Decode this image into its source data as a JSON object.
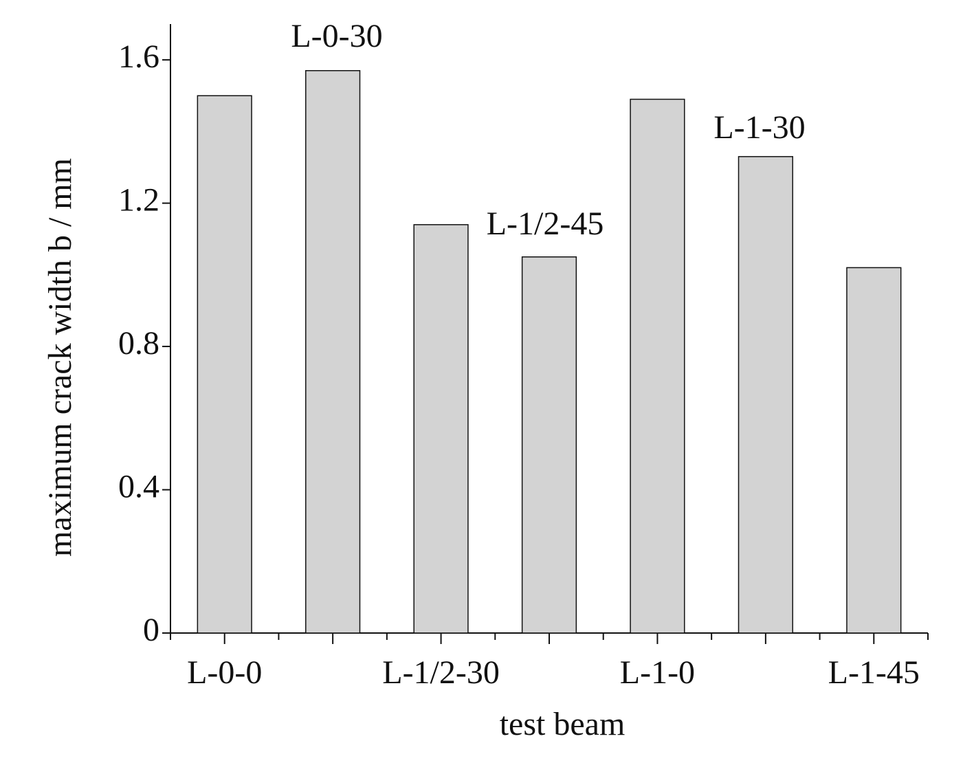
{
  "chart_data": {
    "type": "bar",
    "x_label": "test beam",
    "y_label": "maximum crack width b / mm",
    "categories": [
      "L-0-0",
      null,
      "L-1/2-30",
      null,
      "L-1-0",
      null,
      "L-1-45"
    ],
    "values": [
      1.5,
      1.57,
      1.14,
      1.05,
      1.49,
      1.33,
      1.02
    ],
    "annotations": [
      "L-0-30",
      "L-1/2-45",
      "L-1-30"
    ],
    "color": "#d3d3d3",
    "ylim": [
      0,
      1.7
    ],
    "yticks": [
      0,
      0.4,
      0.8,
      1.2,
      1.6
    ],
    "grid": false
  }
}
